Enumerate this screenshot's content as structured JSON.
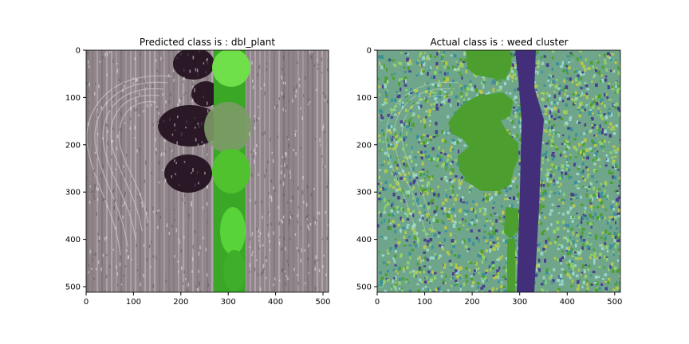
{
  "figure": {
    "panels": [
      {
        "title": "Predicted class is : dbl_plant",
        "image_kind": "aerial-rgb",
        "x_ticks": [
          0,
          100,
          200,
          300,
          400,
          500
        ],
        "y_ticks": [
          0,
          100,
          200,
          300,
          400,
          500
        ],
        "xlim": [
          0,
          512
        ],
        "ylim": [
          512,
          0
        ]
      },
      {
        "title": "Actual class is : weed cluster",
        "image_kind": "annotation-overlay",
        "x_ticks": [
          0,
          100,
          200,
          300,
          400,
          500
        ],
        "y_ticks": [
          0,
          100,
          200,
          300,
          400,
          500
        ],
        "xlim": [
          0,
          512
        ],
        "ylim": [
          512,
          0
        ]
      }
    ]
  },
  "colors": {
    "soil": "#8f858a",
    "soil_light": "#d4cbcf",
    "shadow": "#2a1826",
    "vegetation": "#4fc22e",
    "vegetation_light": "#8af25a",
    "mask_green": "#4c9f2e",
    "mask_purple": "#432e7a",
    "noise_colors": [
      "#4c9f2e",
      "#8fd16a",
      "#3b8f9a",
      "#9ad6c8",
      "#4a3f8c",
      "#b9c84a"
    ]
  }
}
